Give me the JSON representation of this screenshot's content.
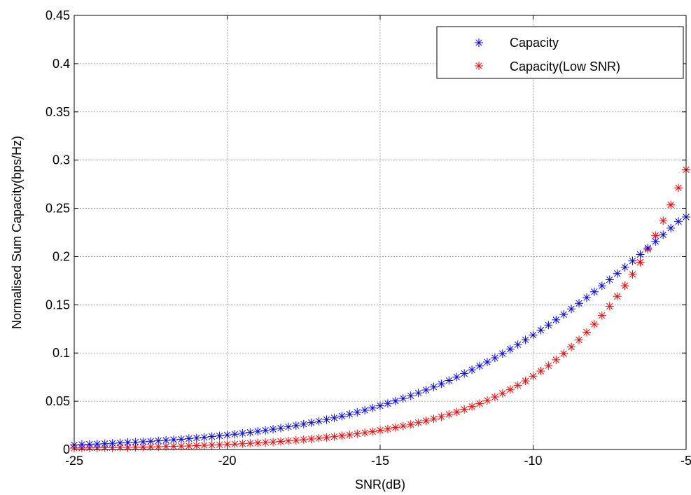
{
  "chart_data": {
    "type": "scatter",
    "title": "",
    "xlabel": "SNR(dB)",
    "ylabel": "Normalised Sum Capacity(bps/Hz)",
    "xlim": [
      -25,
      -5
    ],
    "ylim": [
      0,
      0.45
    ],
    "xticks": [
      -25,
      -20,
      -15,
      -10,
      -5
    ],
    "yticks": [
      0,
      0.05,
      0.1,
      0.15,
      0.2,
      0.25,
      0.3,
      0.35,
      0.4,
      0.45
    ],
    "xtick_labels": [
      "-25",
      "-20",
      "-15",
      "-10",
      "-5"
    ],
    "ytick_labels": [
      "0",
      "0.05",
      "0.1",
      "0.15",
      "0.2",
      "0.25",
      "0.3",
      "0.35",
      "0.4",
      "0.45"
    ],
    "grid": true,
    "legend_position": "top-right",
    "marker": "*",
    "x": [
      -25,
      -24.75,
      -24.5,
      -24.25,
      -24,
      -23.75,
      -23.5,
      -23.25,
      -23,
      -22.75,
      -22.5,
      -22.25,
      -22,
      -21.75,
      -21.5,
      -21.25,
      -21,
      -20.75,
      -20.5,
      -20.25,
      -20,
      -19.75,
      -19.5,
      -19.25,
      -19,
      -18.75,
      -18.5,
      -18.25,
      -18,
      -17.75,
      -17.5,
      -17.25,
      -17,
      -16.75,
      -16.5,
      -16.25,
      -16,
      -15.75,
      -15.5,
      -15.25,
      -15,
      -14.75,
      -14.5,
      -14.25,
      -14,
      -13.75,
      -13.5,
      -13.25,
      -13,
      -12.75,
      -12.5,
      -12.25,
      -12,
      -11.75,
      -11.5,
      -11.25,
      -11,
      -10.75,
      -10.5,
      -10.25,
      -10,
      -9.75,
      -9.5,
      -9.25,
      -9,
      -8.75,
      -8.5,
      -8.25,
      -8,
      -7.75,
      -7.5,
      -7.25,
      -7,
      -6.75,
      -6.5,
      -6.25,
      -6,
      -5.75,
      -5.5,
      -5.25,
      -5
    ],
    "series": [
      {
        "name": "Capacity",
        "color": "#0000ff",
        "values": [
          0.0048,
          0.0051,
          0.0054,
          0.0057,
          0.006,
          0.0064,
          0.0068,
          0.0072,
          0.0076,
          0.008,
          0.0085,
          0.009,
          0.0095,
          0.0101,
          0.0106,
          0.0113,
          0.0119,
          0.0126,
          0.0134,
          0.0141,
          0.015,
          0.0158,
          0.0168,
          0.0177,
          0.0188,
          0.0198,
          0.021,
          0.0222,
          0.0235,
          0.0248,
          0.0263,
          0.0278,
          0.0293,
          0.031,
          0.0328,
          0.0346,
          0.0366,
          0.0386,
          0.0407,
          0.043,
          0.0453,
          0.0477,
          0.0503,
          0.0529,
          0.0557,
          0.0586,
          0.0617,
          0.0648,
          0.0681,
          0.0715,
          0.0751,
          0.0788,
          0.0826,
          0.0866,
          0.0907,
          0.095,
          0.0994,
          0.104,
          0.1087,
          0.1136,
          0.1186,
          0.1237,
          0.129,
          0.1344,
          0.14,
          0.1457,
          0.1515,
          0.1575,
          0.1635,
          0.1697,
          0.176,
          0.1824,
          0.1889,
          0.1955,
          0.2022,
          0.2089,
          0.2157,
          0.2226,
          0.2295,
          0.2364,
          0.241
        ]
      },
      {
        "name": "Capacity(Low SNR)",
        "color": "#ff0000",
        "values": [
          0.0014,
          0.0015,
          0.0016,
          0.0017,
          0.0018,
          0.0019,
          0.0021,
          0.0022,
          0.0023,
          0.0025,
          0.0027,
          0.0029,
          0.0031,
          0.0033,
          0.0035,
          0.0037,
          0.004,
          0.0043,
          0.0046,
          0.0049,
          0.0052,
          0.0056,
          0.006,
          0.0064,
          0.0068,
          0.0073,
          0.0078,
          0.0083,
          0.0089,
          0.0095,
          0.0102,
          0.0109,
          0.0117,
          0.0125,
          0.0133,
          0.0143,
          0.0152,
          0.0163,
          0.0174,
          0.0186,
          0.0199,
          0.0213,
          0.0228,
          0.0244,
          0.026,
          0.0278,
          0.0298,
          0.0318,
          0.034,
          0.0364,
          0.0389,
          0.0416,
          0.0445,
          0.0476,
          0.0509,
          0.0544,
          0.0582,
          0.0622,
          0.0665,
          0.0711,
          0.076,
          0.0813,
          0.0869,
          0.093,
          0.0994,
          0.1063,
          0.1136,
          0.1215,
          0.1299,
          0.1389,
          0.1485,
          0.1588,
          0.1698,
          0.1815,
          0.1941,
          0.2075,
          0.2218,
          0.2372,
          0.2536,
          0.2712,
          0.29
        ]
      }
    ]
  }
}
